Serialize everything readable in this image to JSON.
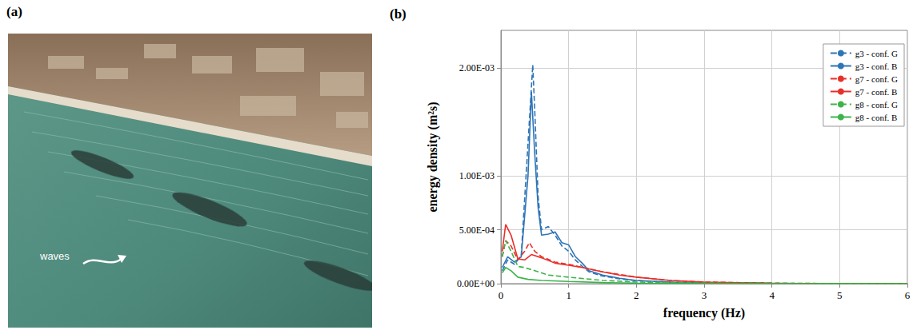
{
  "photo": {
    "label": "(a)",
    "annotation": "waves"
  },
  "chart_data": {
    "type": "line",
    "title": "(b)",
    "x_label": "frequency (Hz)",
    "y_label": "energy density (m²s)",
    "xlim": [
      0,
      6
    ],
    "xticks": [
      0,
      1,
      2,
      3,
      4,
      5,
      6
    ],
    "ylim": [
      0,
      0.00235
    ],
    "yticks": [
      {
        "value": 0,
        "label": "0.00E+00"
      },
      {
        "value": 0.0005,
        "label": "5.00E-04"
      },
      {
        "value": 0.001,
        "label": "1.00E-03"
      },
      {
        "value": 0.002,
        "label": "2.00E-03"
      }
    ],
    "grid": true,
    "legend": "upper right",
    "series": [
      {
        "name": "g3 - conf. G",
        "color": "#2e75b6",
        "line_style": "dashed",
        "x": [
          0.02,
          0.1,
          0.2,
          0.3,
          0.4,
          0.47,
          0.5,
          0.55,
          0.6,
          0.7,
          0.8,
          0.9,
          1.0,
          1.1,
          1.2,
          1.3,
          1.5,
          1.75,
          2,
          2.5,
          3,
          4,
          5,
          6
        ],
        "values": [
          0.00012,
          0.00022,
          0.00018,
          0.00026,
          0.0013,
          0.00203,
          0.0016,
          0.0008,
          0.0005,
          0.00053,
          0.00045,
          0.00035,
          0.0003,
          0.00022,
          0.00016,
          0.00011,
          7e-05,
          4.5e-05,
          2.8e-05,
          1.4e-05,
          7e-06,
          3e-06,
          1e-06,
          0
        ]
      },
      {
        "name": "g3 - conf. B",
        "color": "#2e75b6",
        "line_style": "solid",
        "x": [
          0.02,
          0.1,
          0.2,
          0.3,
          0.4,
          0.45,
          0.5,
          0.55,
          0.6,
          0.7,
          0.8,
          0.9,
          1.0,
          1.1,
          1.2,
          1.3,
          1.5,
          1.75,
          2,
          2.5,
          3,
          4,
          5,
          6
        ],
        "values": [
          0.00015,
          0.00025,
          0.0002,
          0.00025,
          0.001,
          0.00178,
          0.0012,
          0.0007,
          0.00045,
          0.00046,
          0.00048,
          0.00038,
          0.00036,
          0.00025,
          0.00019,
          0.00012,
          8e-05,
          5e-05,
          3e-05,
          1.5e-05,
          8e-06,
          3e-06,
          1e-06,
          0
        ]
      },
      {
        "name": "g7 - conf. G",
        "color": "#e8302a",
        "line_style": "dashed",
        "x": [
          0.02,
          0.07,
          0.15,
          0.25,
          0.35,
          0.42,
          0.5,
          0.6,
          0.8,
          1.0,
          1.2,
          1.5,
          2,
          2.5,
          3,
          4,
          5,
          6
        ],
        "values": [
          0.00025,
          0.0004,
          0.00035,
          0.00022,
          0.0003,
          0.00038,
          0.0003,
          0.00025,
          0.0002,
          0.00018,
          0.00015,
          0.00011,
          6e-05,
          3e-05,
          1.5e-05,
          5e-06,
          1e-06,
          0
        ]
      },
      {
        "name": "g7 - conf. B",
        "color": "#e8302a",
        "line_style": "solid",
        "x": [
          0.02,
          0.07,
          0.15,
          0.25,
          0.35,
          0.45,
          0.6,
          0.8,
          1.0,
          1.2,
          1.5,
          1.75,
          2,
          2.5,
          3,
          3.5,
          4,
          5,
          6
        ],
        "values": [
          0.0003,
          0.00055,
          0.00045,
          0.00023,
          0.00022,
          0.00027,
          0.00024,
          0.00019,
          0.00017,
          0.00015,
          0.00011,
          8e-05,
          6e-05,
          3e-05,
          1.5e-05,
          8e-06,
          4e-06,
          1e-06,
          0
        ]
      },
      {
        "name": "g8 - conf. G",
        "color": "#3cb44b",
        "line_style": "dashed",
        "x": [
          0.02,
          0.07,
          0.15,
          0.25,
          0.35,
          0.5,
          0.7,
          1.0,
          1.5,
          2,
          3,
          4,
          6
        ],
        "values": [
          0.00025,
          0.0004,
          0.0003,
          0.00016,
          0.00015,
          0.00012,
          8e-05,
          6e-05,
          3e-05,
          1.5e-05,
          5e-06,
          2e-06,
          0
        ]
      },
      {
        "name": "g8 - conf. B",
        "color": "#3cb44b",
        "line_style": "solid",
        "x": [
          0.02,
          0.07,
          0.15,
          0.25,
          0.4,
          0.6,
          1.0,
          1.5,
          2,
          3,
          4,
          6
        ],
        "values": [
          0.0001,
          0.00015,
          0.00012,
          6e-05,
          4e-05,
          3e-05,
          2e-05,
          1e-05,
          5e-06,
          2e-06,
          1e-06,
          0
        ]
      }
    ]
  }
}
